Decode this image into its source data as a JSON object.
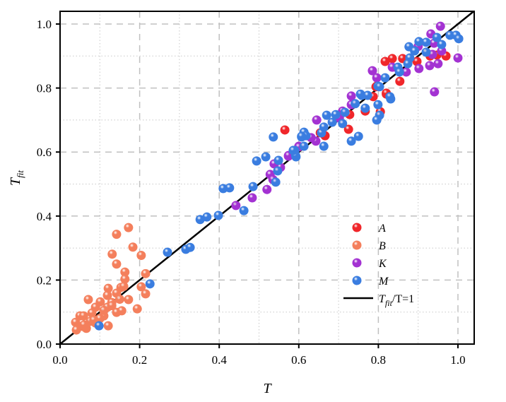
{
  "chart_data": {
    "type": "scatter",
    "title": "",
    "xlabel": "T",
    "ylabel": "T",
    "ylabel_subscript": "fit",
    "xlim": [
      0.0,
      1.04
    ],
    "ylim": [
      0.0,
      1.04
    ],
    "x_ticks": [
      "0.0",
      "0.2",
      "0.4",
      "0.6",
      "0.8",
      "1.0"
    ],
    "y_ticks": [
      "0.0",
      "0.2",
      "0.4",
      "0.6",
      "0.8",
      "1.0"
    ],
    "x_tick_values": [
      0.0,
      0.2,
      0.4,
      0.6,
      0.8,
      1.0
    ],
    "y_tick_values": [
      0.0,
      0.2,
      0.4,
      0.6,
      0.8,
      1.0
    ],
    "grid": "on (dashed major, dotted minor)",
    "legend_position": "lower-right",
    "reference_line": {
      "label_main": "T",
      "label_sub": "fit",
      "label_rest": "/T=1",
      "slope": 1,
      "color": "#000000"
    },
    "series": [
      {
        "name": "A",
        "color": "#f0262a",
        "points": [
          [
            0.565,
            0.669
          ],
          [
            0.654,
            0.66
          ],
          [
            0.666,
            0.651
          ],
          [
            0.728,
            0.717
          ],
          [
            0.725,
            0.671
          ],
          [
            0.767,
            0.728
          ],
          [
            0.794,
            0.804
          ],
          [
            0.82,
            0.781
          ],
          [
            0.805,
            0.726
          ],
          [
            0.947,
            0.903
          ],
          [
            0.817,
            0.883
          ],
          [
            0.835,
            0.892
          ],
          [
            0.861,
            0.892
          ],
          [
            0.897,
            0.883
          ],
          [
            0.854,
            0.821
          ],
          [
            0.796,
            0.806
          ],
          [
            0.82,
            0.784
          ],
          [
            0.787,
            0.773
          ],
          [
            0.93,
            0.9
          ],
          [
            0.97,
            0.9
          ]
        ]
      },
      {
        "name": "B",
        "color": "#f47f5c",
        "points": [
          [
            0.172,
            0.364
          ],
          [
            0.142,
            0.343
          ],
          [
            0.183,
            0.303
          ],
          [
            0.204,
            0.277
          ],
          [
            0.131,
            0.281
          ],
          [
            0.142,
            0.25
          ],
          [
            0.163,
            0.225
          ],
          [
            0.163,
            0.203
          ],
          [
            0.215,
            0.22
          ],
          [
            0.204,
            0.179
          ],
          [
            0.215,
            0.157
          ],
          [
            0.172,
            0.139
          ],
          [
            0.194,
            0.11
          ],
          [
            0.121,
            0.174
          ],
          [
            0.153,
            0.177
          ],
          [
            0.142,
            0.159
          ],
          [
            0.071,
            0.139
          ],
          [
            0.119,
            0.152
          ],
          [
            0.101,
            0.132
          ],
          [
            0.089,
            0.115
          ],
          [
            0.119,
            0.115
          ],
          [
            0.142,
            0.099
          ],
          [
            0.155,
            0.104
          ],
          [
            0.05,
            0.088
          ],
          [
            0.059,
            0.088
          ],
          [
            0.08,
            0.097
          ],
          [
            0.11,
            0.088
          ],
          [
            0.039,
            0.068
          ],
          [
            0.076,
            0.071
          ],
          [
            0.121,
            0.057
          ],
          [
            0.057,
            0.055
          ],
          [
            0.041,
            0.044
          ],
          [
            0.066,
            0.049
          ],
          [
            0.089,
            0.066
          ],
          [
            0.13,
            0.13
          ],
          [
            0.11,
            0.105
          ],
          [
            0.1,
            0.08
          ],
          [
            0.15,
            0.14
          ],
          [
            0.16,
            0.18
          ],
          [
            0.13,
            0.12
          ],
          [
            0.085,
            0.075
          ],
          [
            0.06,
            0.06
          ]
        ]
      },
      {
        "name": "K",
        "color": "#a332d2",
        "points": [
          [
            0.442,
            0.433
          ],
          [
            0.483,
            0.457
          ],
          [
            0.52,
            0.483
          ],
          [
            0.528,
            0.53
          ],
          [
            0.535,
            0.514
          ],
          [
            0.554,
            0.552
          ],
          [
            0.538,
            0.563
          ],
          [
            0.574,
            0.587
          ],
          [
            0.6,
            0.618
          ],
          [
            0.574,
            0.589
          ],
          [
            0.6,
            0.616
          ],
          [
            0.643,
            0.634
          ],
          [
            0.631,
            0.645
          ],
          [
            0.645,
            0.7
          ],
          [
            0.71,
            0.728
          ],
          [
            0.702,
            0.706
          ],
          [
            0.732,
            0.775
          ],
          [
            0.732,
            0.748
          ],
          [
            0.956,
            0.993
          ],
          [
            0.932,
            0.969
          ],
          [
            0.959,
            0.916
          ],
          [
            0.936,
            0.905
          ],
          [
            1.0,
            0.894
          ],
          [
            0.902,
            0.861
          ],
          [
            0.929,
            0.87
          ],
          [
            0.95,
            0.876
          ],
          [
            0.835,
            0.865
          ],
          [
            0.87,
            0.85
          ],
          [
            0.785,
            0.854
          ],
          [
            0.796,
            0.832
          ],
          [
            0.941,
            0.788
          ],
          [
            0.9,
            0.93
          ],
          [
            0.94,
            0.94
          ],
          [
            0.85,
            0.86
          ]
        ]
      },
      {
        "name": "M",
        "color": "#3a7de0",
        "points": [
          [
            0.098,
            0.057
          ],
          [
            0.226,
            0.188
          ],
          [
            0.27,
            0.287
          ],
          [
            0.316,
            0.296
          ],
          [
            0.327,
            0.302
          ],
          [
            0.352,
            0.389
          ],
          [
            0.369,
            0.397
          ],
          [
            0.398,
            0.402
          ],
          [
            0.41,
            0.486
          ],
          [
            0.426,
            0.488
          ],
          [
            0.462,
            0.417
          ],
          [
            0.485,
            0.492
          ],
          [
            0.494,
            0.572
          ],
          [
            0.517,
            0.585
          ],
          [
            0.536,
            0.647
          ],
          [
            0.542,
            0.506
          ],
          [
            0.547,
            0.541
          ],
          [
            0.549,
            0.574
          ],
          [
            0.59,
            0.605
          ],
          [
            0.593,
            0.585
          ],
          [
            0.607,
            0.647
          ],
          [
            0.592,
            0.589
          ],
          [
            0.586,
            0.605
          ],
          [
            0.613,
            0.618
          ],
          [
            0.613,
            0.662
          ],
          [
            0.618,
            0.651
          ],
          [
            0.607,
            0.649
          ],
          [
            0.657,
            0.66
          ],
          [
            0.663,
            0.678
          ],
          [
            0.663,
            0.618
          ],
          [
            0.67,
            0.715
          ],
          [
            0.684,
            0.693
          ],
          [
            0.693,
            0.717
          ],
          [
            0.716,
            0.724
          ],
          [
            0.71,
            0.689
          ],
          [
            0.732,
            0.634
          ],
          [
            0.75,
            0.649
          ],
          [
            0.742,
            0.751
          ],
          [
            0.758,
            0.777
          ],
          [
            0.773,
            0.777
          ],
          [
            0.767,
            0.737
          ],
          [
            0.799,
            0.806
          ],
          [
            0.831,
            0.766
          ],
          [
            0.799,
            0.748
          ],
          [
            0.803,
            0.715
          ],
          [
            0.796,
            0.7
          ],
          [
            0.98,
            0.965
          ],
          [
            0.995,
            0.965
          ],
          [
            1.002,
            0.954
          ],
          [
            0.947,
            0.958
          ],
          [
            0.902,
            0.945
          ],
          [
            0.92,
            0.943
          ],
          [
            0.959,
            0.936
          ],
          [
            0.877,
            0.929
          ],
          [
            0.891,
            0.916
          ],
          [
            0.92,
            0.912
          ],
          [
            0.879,
            0.894
          ],
          [
            0.874,
            0.876
          ],
          [
            0.849,
            0.865
          ],
          [
            0.853,
            0.85
          ],
          [
            0.817,
            0.832
          ],
          [
            0.803,
            0.804
          ],
          [
            0.755,
            0.781
          ],
          [
            0.829,
            0.773
          ]
        ]
      }
    ]
  }
}
